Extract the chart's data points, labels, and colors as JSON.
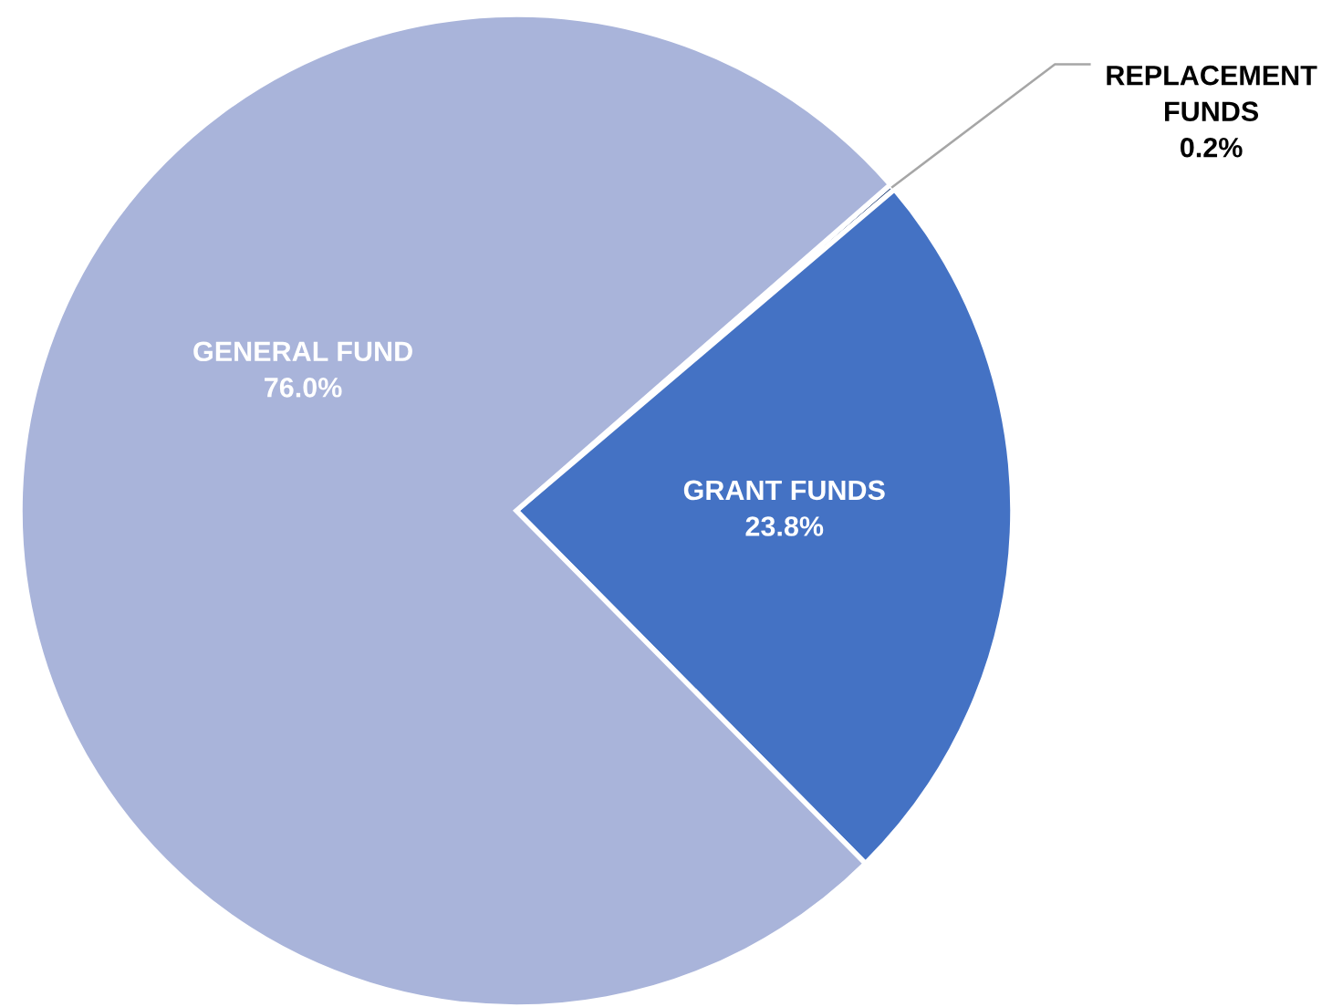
{
  "chart_data": {
    "type": "pie",
    "categories": [
      "REPLACEMENT FUNDS",
      "GRANT FUNDS",
      "GENERAL FUND"
    ],
    "values": [
      0.2,
      23.8,
      76.0
    ],
    "value_labels": [
      "0.2%",
      "23.8%",
      "76.0%"
    ],
    "colors": [
      "#264478",
      "#4472c4",
      "#a9b4da"
    ],
    "legend": false
  }
}
